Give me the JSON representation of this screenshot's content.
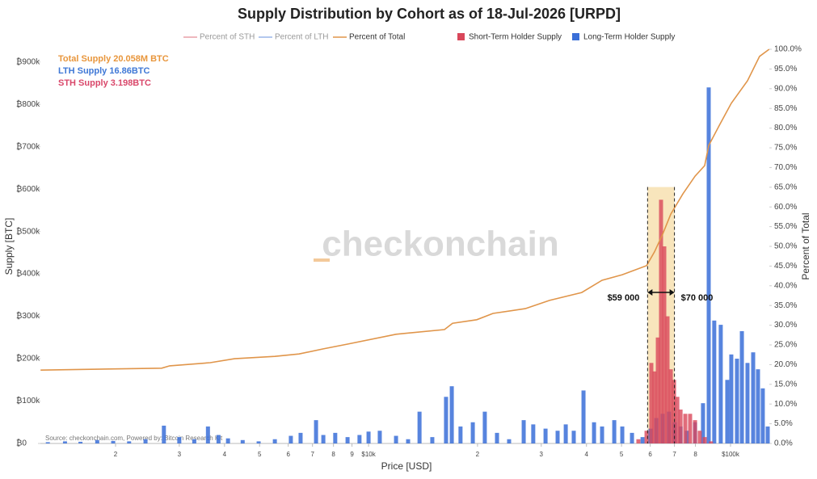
{
  "chart_data": {
    "type": "bar",
    "title": "Supply Distribution by Cohort as of 18-Jul-2026 [URPD]",
    "x_label": "Price [USD]",
    "y_label": "Supply [BTC]",
    "y2_label": "Percent of Total",
    "watermark": "checkonchain",
    "source": "Source: checkonchain.com, Powered by: Bitcoin Research Kit",
    "notes": [
      {
        "text": "Total Supply 20.058M BTC",
        "color": "#e8963c"
      },
      {
        "text": "LTH Supply 16.86BTC",
        "color": "#3f78d6"
      },
      {
        "text": "STH Supply 3.198BTC",
        "color": "#d9476a"
      }
    ],
    "highlight": {
      "x": [
        59000,
        70000
      ],
      "top": 605000,
      "labels": [
        "$59 000",
        "$70 000"
      ],
      "color": "#f6dca6"
    },
    "x_log": true,
    "grid": false,
    "xlim": [
      1240,
      128000
    ],
    "xticks": [
      {
        "value": 2000,
        "label": "2"
      },
      {
        "value": 3000,
        "label": "3"
      },
      {
        "value": 4000,
        "label": "4"
      },
      {
        "value": 5000,
        "label": "5"
      },
      {
        "value": 6000,
        "label": "6"
      },
      {
        "value": 7000,
        "label": "7"
      },
      {
        "value": 8000,
        "label": "8"
      },
      {
        "value": 9000,
        "label": "9"
      },
      {
        "value": 10000,
        "label": "$10k"
      },
      {
        "value": 20000,
        "label": "2"
      },
      {
        "value": 30000,
        "label": "3"
      },
      {
        "value": 40000,
        "label": "4"
      },
      {
        "value": 50000,
        "label": "5"
      },
      {
        "value": 60000,
        "label": "6"
      },
      {
        "value": 70000,
        "label": "7"
      },
      {
        "value": 80000,
        "label": "8"
      },
      {
        "value": 100000,
        "label": "$100k"
      }
    ],
    "ylim": [
      0,
      930000
    ],
    "yticks": [
      {
        "value": 0,
        "label": "₿0"
      },
      {
        "value": 100000,
        "label": "₿100k"
      },
      {
        "value": 200000,
        "label": "₿200k"
      },
      {
        "value": 300000,
        "label": "₿300k"
      },
      {
        "value": 400000,
        "label": "₿400k"
      },
      {
        "value": 500000,
        "label": "₿500k"
      },
      {
        "value": 600000,
        "label": "₿600k"
      },
      {
        "value": 700000,
        "label": "₿700k"
      },
      {
        "value": 800000,
        "label": "₿800k"
      },
      {
        "value": 900000,
        "label": "₿900k"
      }
    ],
    "y2lim": [
      0,
      100
    ],
    "y2ticks": [
      {
        "value": 0,
        "label": "0.0%"
      },
      {
        "value": 5,
        "label": "5.0%"
      },
      {
        "value": 10,
        "label": "10.0%"
      },
      {
        "value": 15,
        "label": "15.0%"
      },
      {
        "value": 20,
        "label": "20.0%"
      },
      {
        "value": 25,
        "label": "25.0%"
      },
      {
        "value": 30,
        "label": "30.0%"
      },
      {
        "value": 35,
        "label": "35.0%"
      },
      {
        "value": 40,
        "label": "40.0%"
      },
      {
        "value": 45,
        "label": "45.0%"
      },
      {
        "value": 50,
        "label": "50.0%"
      },
      {
        "value": 55,
        "label": "55.0%"
      },
      {
        "value": 60,
        "label": "60.0%"
      },
      {
        "value": 65,
        "label": "65.0%"
      },
      {
        "value": 70,
        "label": "70.0%"
      },
      {
        "value": 75,
        "label": "75.0%"
      },
      {
        "value": 80,
        "label": "80.0%"
      },
      {
        "value": 85,
        "label": "85.0%"
      },
      {
        "value": 90,
        "label": "90.0%"
      },
      {
        "value": 95,
        "label": "95.0%"
      },
      {
        "value": 100,
        "label": "100.0%"
      }
    ],
    "legend_only": [
      {
        "name": "Percent of STH",
        "color": "#e8a0a8"
      },
      {
        "name": "Percent of LTH",
        "color": "#9ab5e8"
      }
    ],
    "series": [
      {
        "name": "Short-Term Holder Supply",
        "type": "bar",
        "color": "#d9475a",
        "x": [
          55650,
          58610,
          60430,
          61660,
          62980,
          64270,
          65610,
          66980,
          68390,
          69820,
          71290,
          72770,
          75000,
          77330,
          79790,
          82220,
          84850,
          88310
        ],
        "values": [
          10000,
          30000,
          190000,
          170000,
          250000,
          575000,
          465000,
          300000,
          175000,
          150000,
          110000,
          80000,
          70000,
          70000,
          55000,
          30000,
          15000,
          5000
        ]
      },
      {
        "name": "Long-Term Holder Supply",
        "type": "bar",
        "color": "#3a6fd8",
        "x": [
          1300,
          1450,
          1600,
          1780,
          1970,
          2180,
          2420,
          2720,
          3000,
          3300,
          3600,
          3850,
          4090,
          4490,
          4970,
          5510,
          6100,
          6490,
          7160,
          7500,
          8090,
          8750,
          9440,
          10000,
          10740,
          11910,
          12860,
          13830,
          15000,
          16370,
          16980,
          17950,
          19410,
          20950,
          22640,
          24450,
          26830,
          28510,
          30830,
          33290,
          35060,
          36890,
          39250,
          41970,
          44170,
          47730,
          50230,
          53430,
          57150,
          60120,
          62370,
          64940,
          67610,
          70150,
          72770,
          75740,
          79790,
          83950,
          87050,
          90170,
          93980,
          97950,
          100500,
          104200,
          107500,
          111400,
          115500,
          119100,
          122800,
          126700
        ],
        "values": [
          3000,
          5000,
          4000,
          8000,
          6000,
          5000,
          10000,
          42000,
          15000,
          10000,
          40000,
          20000,
          12000,
          8000,
          5000,
          10000,
          18000,
          25000,
          55000,
          20000,
          25000,
          15000,
          20000,
          28000,
          30000,
          18000,
          10000,
          75000,
          15000,
          110000,
          135000,
          40000,
          50000,
          75000,
          25000,
          10000,
          55000,
          45000,
          35000,
          30000,
          45000,
          30000,
          125000,
          50000,
          40000,
          55000,
          40000,
          25000,
          15000,
          35000,
          60000,
          70000,
          75000,
          50000,
          40000,
          30000,
          50000,
          95000,
          840000,
          290000,
          280000,
          150000,
          210000,
          200000,
          265000,
          190000,
          215000,
          175000,
          130000,
          40000
        ]
      },
      {
        "name": "Percent of Total",
        "type": "line",
        "axis": "y2",
        "color": "#e0954a",
        "x": [
          1241,
          2683,
          2823,
          3652,
          4262,
          5508,
          6427,
          7500,
          8750,
          11910,
          16210,
          17060,
          19910,
          22080,
          27100,
          31620,
          38820,
          44170,
          50230,
          58610,
          61660,
          64940,
          68390,
          73840,
          79790,
          84850,
          87050,
          93090,
          100500,
          111400,
          120300,
          127900
        ],
        "values": [
          18.6,
          19.1,
          19.7,
          20.5,
          21.5,
          22.1,
          22.7,
          24,
          25.2,
          27.7,
          28.9,
          30.5,
          31.4,
          33,
          34.2,
          36.3,
          38.3,
          41.4,
          42.8,
          45.1,
          48.6,
          53.1,
          58.2,
          63.3,
          67.8,
          70.5,
          75.6,
          80.7,
          86.3,
          92,
          98.2,
          100
        ]
      }
    ]
  }
}
